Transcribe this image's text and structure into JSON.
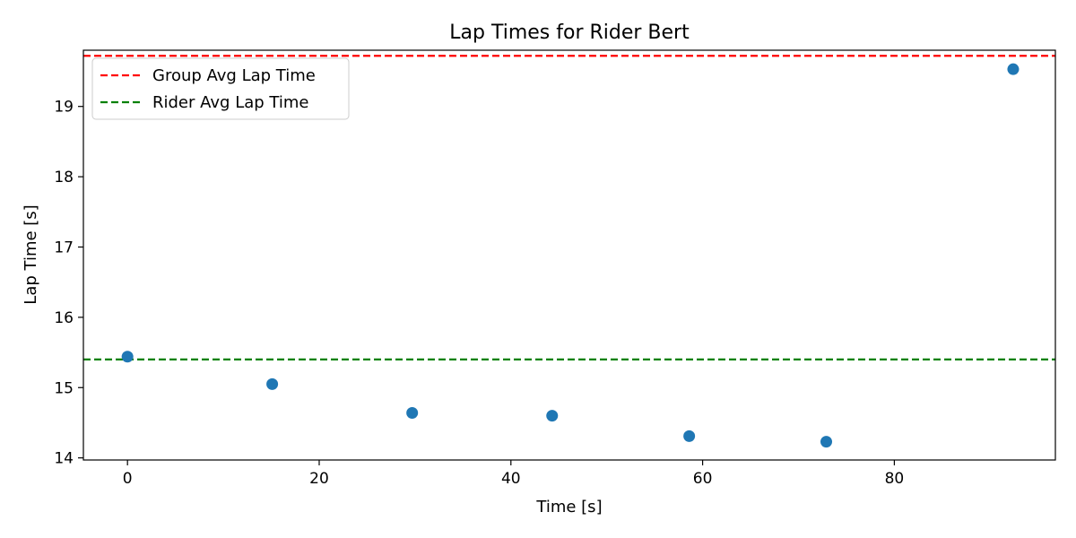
{
  "chart_data": {
    "type": "scatter",
    "title": "Lap Times for Rider Bert",
    "xlabel": "Time [s]",
    "ylabel": "Lap Time [s]",
    "xlim": [
      -4.6,
      96.8
    ],
    "ylim": [
      13.97,
      19.8
    ],
    "xticks": [
      0,
      20,
      40,
      60,
      80
    ],
    "yticks": [
      14,
      15,
      16,
      17,
      18,
      19
    ],
    "grid": false,
    "legend_position": "upper-left",
    "series": [
      {
        "type": "scatter",
        "color": "#1f77b4",
        "x": [
          0,
          15.1,
          29.7,
          44.3,
          58.6,
          72.9,
          92.4
        ],
        "y": [
          15.44,
          15.05,
          14.64,
          14.6,
          14.31,
          14.23,
          19.53
        ]
      }
    ],
    "reference_lines": [
      {
        "name": "Group Avg Lap Time",
        "orientation": "horizontal",
        "y": 19.72,
        "color": "#ff0000",
        "style": "dashed"
      },
      {
        "name": "Rider Avg Lap Time",
        "orientation": "horizontal",
        "y": 15.4,
        "color": "#008000",
        "style": "dashed"
      }
    ]
  }
}
